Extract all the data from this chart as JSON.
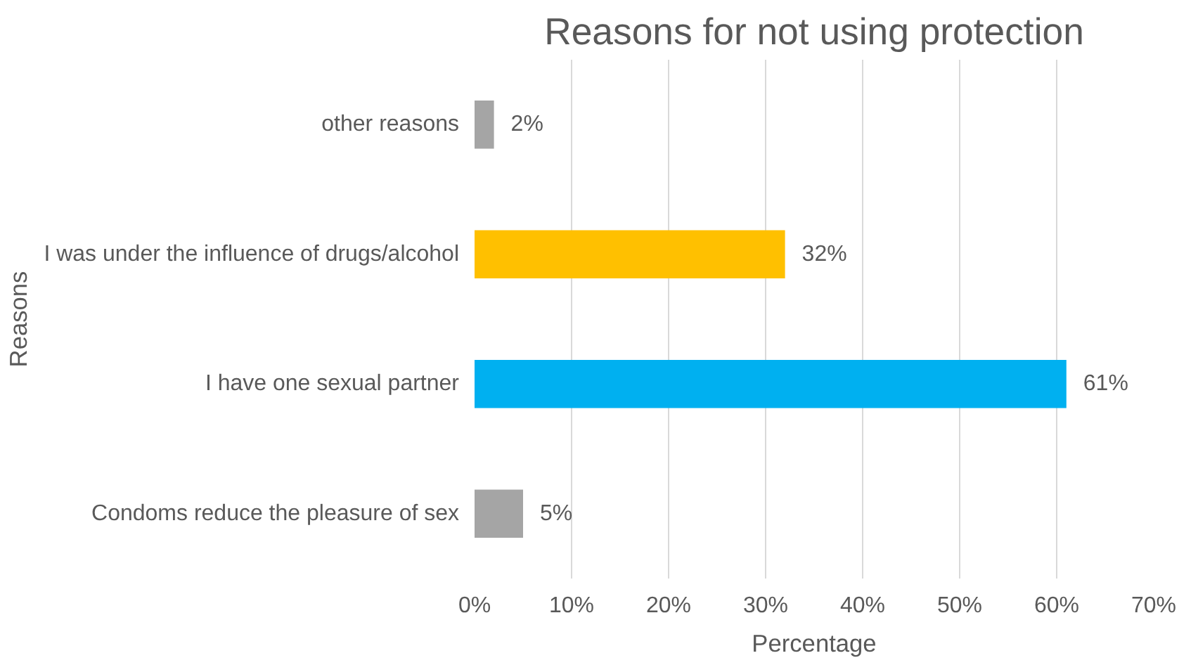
{
  "chart_data": {
    "type": "bar",
    "orientation": "horizontal",
    "title": "Reasons for not using protection",
    "xlabel": "Percentage",
    "ylabel": "Reasons",
    "categories": [
      "other reasons",
      "I was under the influence of drugs/alcohol",
      "I have one sexual partner",
      "Condoms reduce the pleasure of sex"
    ],
    "values": [
      2,
      32,
      61,
      5
    ],
    "colors": [
      "#a5a5a5",
      "#ffc000",
      "#00b0f0",
      "#a5a5a5"
    ],
    "value_labels": [
      "2%",
      "32%",
      "61%",
      "5%"
    ],
    "xlim": [
      0,
      70
    ],
    "xticks": [
      {
        "value": 0,
        "label": "0%"
      },
      {
        "value": 10,
        "label": "10%"
      },
      {
        "value": 20,
        "label": "20%"
      },
      {
        "value": 30,
        "label": "30%"
      },
      {
        "value": 40,
        "label": "40%"
      },
      {
        "value": 50,
        "label": "50%"
      },
      {
        "value": 60,
        "label": "60%"
      },
      {
        "value": 70,
        "label": "70%"
      }
    ],
    "grid": "x"
  }
}
